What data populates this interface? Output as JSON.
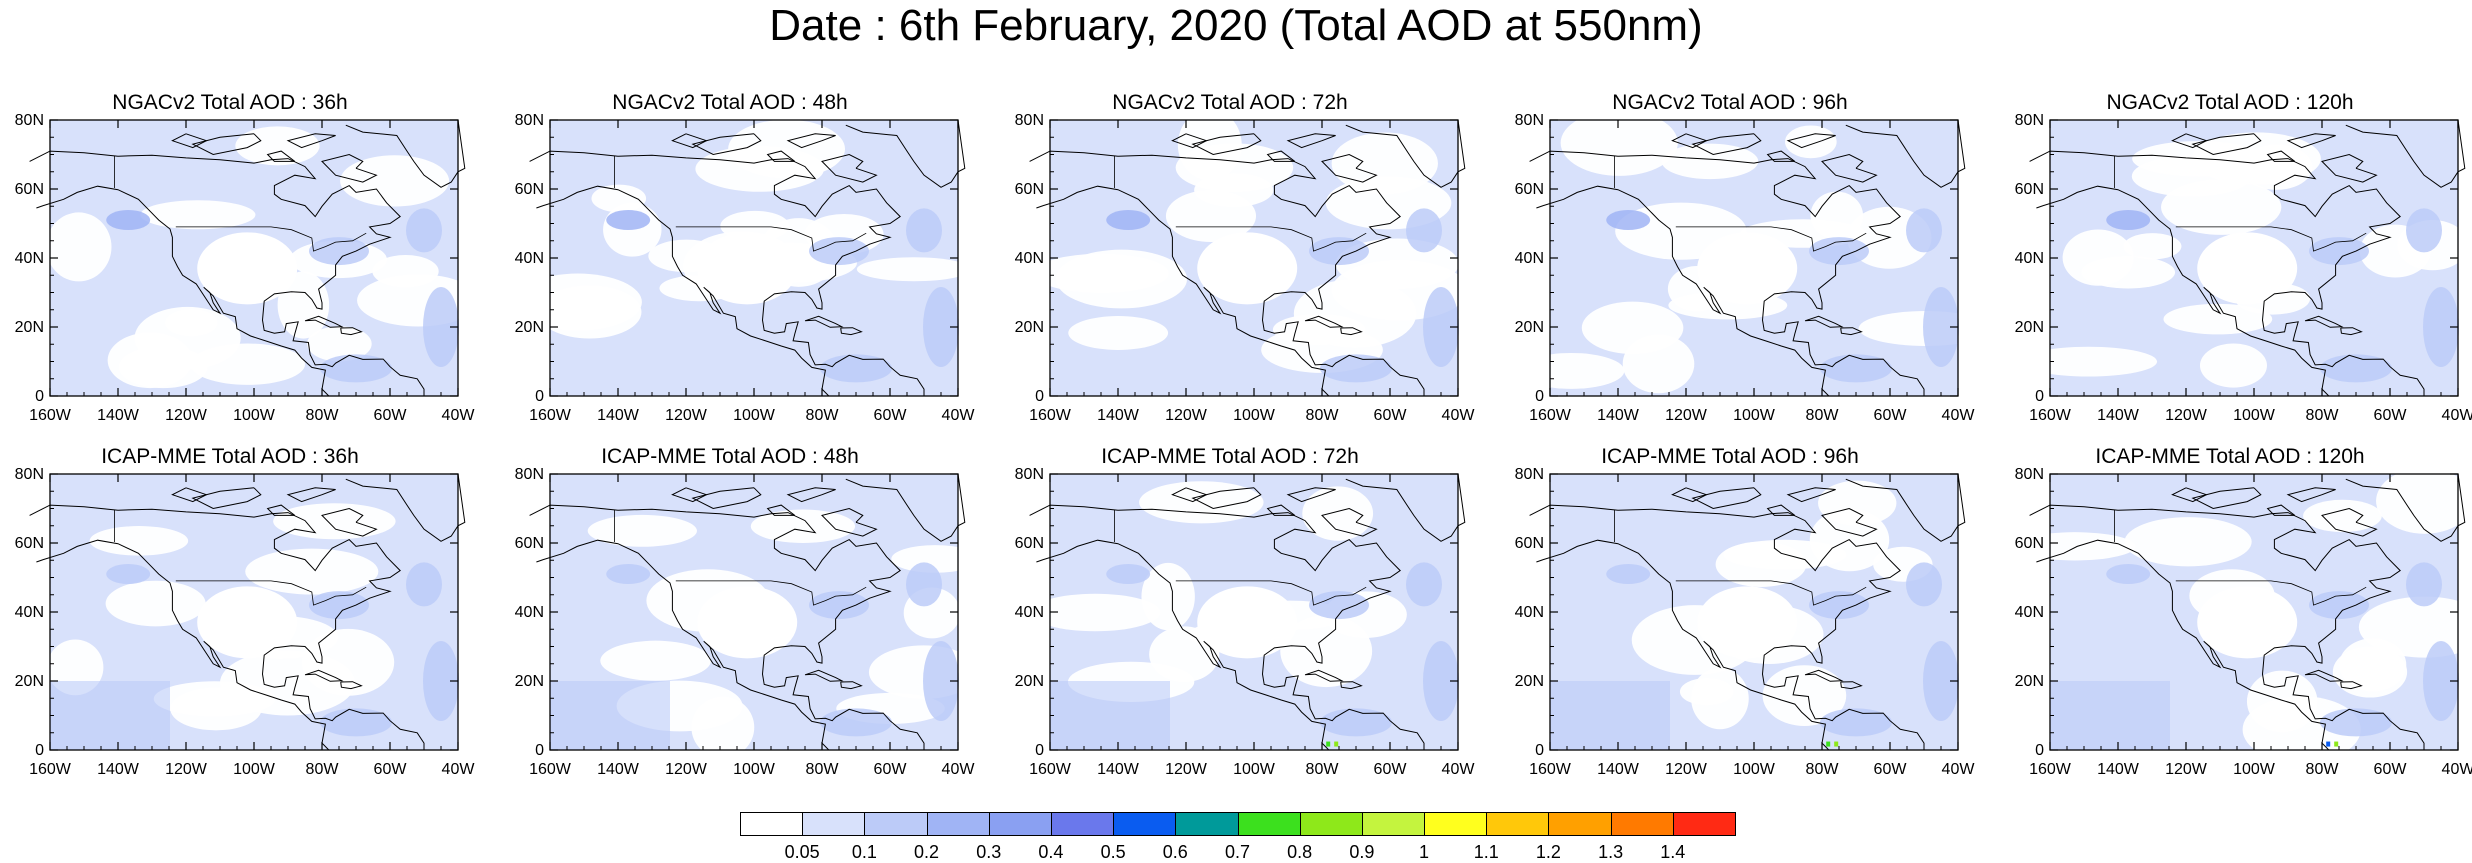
{
  "title": "Date : 6th February, 2020 (Total AOD at 550nm)",
  "axes": {
    "x_ticks": [
      "160W",
      "140W",
      "120W",
      "100W",
      "80W",
      "60W",
      "40W"
    ],
    "y_ticks": [
      "0",
      "20N",
      "40N",
      "60N",
      "80N"
    ]
  },
  "panels": [
    {
      "title": "NGACv2 Total AOD : 36h",
      "model": "NGACv2",
      "lead": "36h"
    },
    {
      "title": "NGACv2 Total AOD : 48h",
      "model": "NGACv2",
      "lead": "48h"
    },
    {
      "title": "NGACv2 Total AOD : 72h",
      "model": "NGACv2",
      "lead": "72h"
    },
    {
      "title": "NGACv2 Total AOD : 96h",
      "model": "NGACv2",
      "lead": "96h"
    },
    {
      "title": "NGACv2 Total AOD : 120h",
      "model": "NGACv2",
      "lead": "120h"
    },
    {
      "title": "ICAP-MME Total AOD : 36h",
      "model": "ICAP-MME",
      "lead": "36h"
    },
    {
      "title": "ICAP-MME Total AOD : 48h",
      "model": "ICAP-MME",
      "lead": "48h"
    },
    {
      "title": "ICAP-MME Total AOD : 72h",
      "model": "ICAP-MME",
      "lead": "72h"
    },
    {
      "title": "ICAP-MME Total AOD : 96h",
      "model": "ICAP-MME",
      "lead": "96h"
    },
    {
      "title": "ICAP-MME Total AOD : 120h",
      "model": "ICAP-MME",
      "lead": "120h"
    }
  ],
  "colorbar": {
    "labels": [
      "0.05",
      "0.1",
      "0.2",
      "0.3",
      "0.4",
      "0.5",
      "0.6",
      "0.7",
      "0.8",
      "0.9",
      "1",
      "1.1",
      "1.2",
      "1.3",
      "1.4"
    ],
    "colors": [
      "#ffffff",
      "#d8e1fb",
      "#bccbf8",
      "#a0b4f5",
      "#8aa0f2",
      "#6a78ec",
      "#0a5cf0",
      "#009a9a",
      "#3ce01e",
      "#8ee81a",
      "#c4f43e",
      "#ffff1e",
      "#ffc80a",
      "#ffa000",
      "#ff7a00",
      "#ff2a14"
    ]
  },
  "map_colors": {
    "background": "#ffffff",
    "level_01": "#d8e1fb",
    "level_02": "#bccbf8",
    "level_03": "#a0b4f5"
  }
}
